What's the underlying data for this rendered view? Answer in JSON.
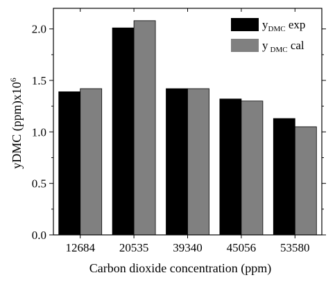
{
  "chart_data": {
    "type": "bar",
    "categories": [
      "12684",
      "20535",
      "39340",
      "45056",
      "53580"
    ],
    "series": [
      {
        "name_main": "y",
        "name_sub": "DMC",
        "name_suffix": " exp",
        "color": "#000000",
        "values": [
          1.39,
          2.01,
          1.42,
          1.32,
          1.13
        ]
      },
      {
        "name_main": "y",
        "name_sub": "DMC",
        "name_suffix": " cal",
        "color": "#808080",
        "values": [
          1.42,
          2.08,
          1.42,
          1.3,
          1.05
        ]
      }
    ],
    "xlabel": "Carbon dioxide concentration (ppm)",
    "ylabel_main": "yDMC (ppm)x10",
    "ylabel_sup": "6",
    "ylim": [
      0,
      2.2
    ],
    "yticks": [
      "0.0",
      "0.5",
      "1.0",
      "1.5",
      "2.0"
    ],
    "ytick_values": [
      0,
      0.5,
      1.0,
      1.5,
      2.0
    ],
    "legend_position": "top-right",
    "grid": false
  }
}
